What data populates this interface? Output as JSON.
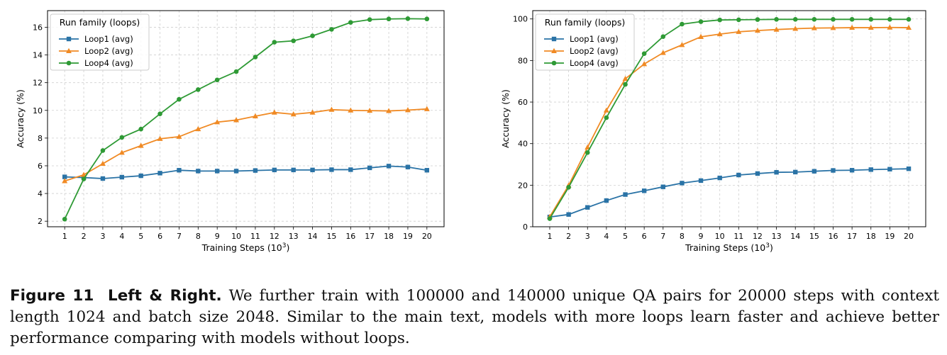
{
  "chart_data": [
    {
      "type": "line",
      "panel": "left",
      "title": "",
      "xlabel": "Training Steps (10",
      "xlabel_sup": "3",
      "xlabel_end": ")",
      "ylabel": "Accuracy (%)",
      "x": [
        1,
        2,
        3,
        4,
        5,
        6,
        7,
        8,
        9,
        10,
        11,
        12,
        13,
        14,
        15,
        16,
        17,
        18,
        19,
        20
      ],
      "xlim": [
        0.1,
        20.9
      ],
      "ylim": [
        1.6,
        17.2
      ],
      "yticks": [
        2,
        4,
        6,
        8,
        10,
        12,
        14,
        16
      ],
      "grid": true,
      "legend_title": "Run family (loops)",
      "legend_position": "top-left",
      "series": [
        {
          "name": "Loop1 (avg)",
          "color": "#2a73a6",
          "marker": "square",
          "values": [
            5.2,
            5.15,
            5.08,
            5.18,
            5.28,
            5.47,
            5.68,
            5.62,
            5.62,
            5.62,
            5.66,
            5.7,
            5.7,
            5.7,
            5.72,
            5.72,
            5.85,
            5.98,
            5.91,
            5.68
          ]
        },
        {
          "name": "Loop2 (avg)",
          "color": "#f08a24",
          "marker": "triangle",
          "values": [
            4.9,
            5.35,
            6.15,
            6.95,
            7.45,
            7.95,
            8.1,
            8.65,
            9.15,
            9.3,
            9.58,
            9.85,
            9.72,
            9.85,
            10.05,
            10.0,
            9.98,
            9.96,
            10.02,
            10.1
          ]
        },
        {
          "name": "Loop4 (avg)",
          "color": "#2e9a35",
          "marker": "circle",
          "values": [
            2.15,
            5.05,
            7.1,
            8.05,
            8.65,
            9.75,
            10.8,
            11.5,
            12.2,
            12.8,
            13.85,
            14.92,
            15.02,
            15.38,
            15.85,
            16.35,
            16.55,
            16.6,
            16.62,
            16.6
          ]
        }
      ]
    },
    {
      "type": "line",
      "panel": "right",
      "title": "",
      "xlabel": "Training Steps (10",
      "xlabel_sup": "3",
      "xlabel_end": ")",
      "ylabel": "Accuracy (%)",
      "x": [
        1,
        2,
        3,
        4,
        5,
        6,
        7,
        8,
        9,
        10,
        11,
        12,
        13,
        14,
        15,
        16,
        17,
        18,
        19,
        20
      ],
      "xlim": [
        0.1,
        20.9
      ],
      "ylim": [
        0,
        104
      ],
      "yticks": [
        0,
        20,
        40,
        60,
        80,
        100
      ],
      "grid": true,
      "legend_title": "Run family (loops)",
      "legend_position": "top-left",
      "series": [
        {
          "name": "Loop1 (avg)",
          "color": "#2a73a6",
          "marker": "square",
          "values": [
            4.7,
            5.9,
            9.3,
            12.6,
            15.5,
            17.3,
            19.2,
            21.0,
            22.2,
            23.5,
            24.9,
            25.6,
            26.2,
            26.3,
            26.7,
            27.1,
            27.2,
            27.5,
            27.7,
            27.9
          ]
        },
        {
          "name": "Loop2 (avg)",
          "color": "#f08a24",
          "marker": "triangle",
          "values": [
            4.8,
            19.9,
            38.2,
            56.0,
            71.2,
            78.3,
            83.7,
            87.5,
            91.4,
            92.7,
            93.8,
            94.4,
            94.9,
            95.3,
            95.6,
            95.7,
            95.8,
            95.8,
            95.9,
            95.8
          ]
        },
        {
          "name": "Loop4 (avg)",
          "color": "#2e9a35",
          "marker": "circle",
          "values": [
            3.9,
            19.0,
            35.7,
            52.5,
            68.5,
            83.3,
            91.5,
            97.5,
            98.7,
            99.5,
            99.6,
            99.7,
            99.8,
            99.8,
            99.8,
            99.8,
            99.8,
            99.8,
            99.8,
            99.8
          ]
        }
      ]
    }
  ],
  "caption": {
    "figure_label": "Figure 11",
    "bold_lead": "Left & Right.",
    "text": "We further train with 100000 and 140000 unique QA pairs for 20000 steps with context length 1024 and batch size 2048. Similar to the main text, models with more loops learn faster and achieve better performance comparing with models without loops."
  }
}
